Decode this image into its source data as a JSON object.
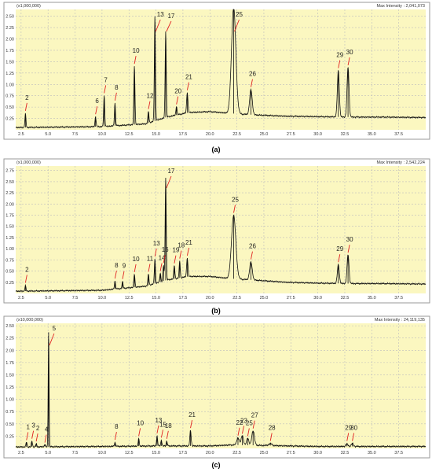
{
  "chart_data": [
    {
      "type": "line",
      "caption": "(a)",
      "scale_label": "(x1,000,000)",
      "max_intensity_label": "Max Intensity : 2,041,073",
      "xlim": [
        2.0,
        40.0
      ],
      "ylim": [
        0,
        2.65
      ],
      "x_ticks": [
        "2.5",
        "5.0",
        "7.5",
        "10.0",
        "12.5",
        "15.0",
        "17.5",
        "20.0",
        "22.5",
        "25.0",
        "27.5",
        "30.0",
        "32.5",
        "35.0",
        "37.5"
      ],
      "y_ticks": [
        "0.25",
        "0.50",
        "0.75",
        "1.00",
        "1.25",
        "1.50",
        "1.75",
        "2.00",
        "2.25",
        "2.50"
      ],
      "baseline": [
        [
          2.0,
          0.05
        ],
        [
          10.0,
          0.07
        ],
        [
          14.0,
          0.13
        ],
        [
          16.0,
          0.28
        ],
        [
          18.0,
          0.38
        ],
        [
          20.0,
          0.4
        ],
        [
          22.0,
          0.36
        ],
        [
          24.0,
          0.33
        ],
        [
          27.0,
          0.3
        ],
        [
          30.0,
          0.29
        ],
        [
          33.0,
          0.28
        ],
        [
          36.0,
          0.28
        ],
        [
          40.0,
          0.27
        ]
      ],
      "peaks": [
        {
          "label": "2",
          "rt": 2.9,
          "height": 0.3,
          "width": 0.05
        },
        {
          "label": "6",
          "rt": 9.4,
          "height": 0.22,
          "width": 0.05
        },
        {
          "label": "7",
          "rt": 10.2,
          "height": 0.68,
          "width": 0.05
        },
        {
          "label": "8",
          "rt": 11.2,
          "height": 0.5,
          "width": 0.05
        },
        {
          "label": "10",
          "rt": 13.0,
          "height": 1.3,
          "width": 0.05
        },
        {
          "label": "12",
          "rt": 14.3,
          "height": 0.25,
          "width": 0.05
        },
        {
          "label": "13",
          "rt": 14.9,
          "height": 2.3,
          "width": 0.05
        },
        {
          "label": "17",
          "rt": 15.9,
          "height": 1.9,
          "width": 0.05
        },
        {
          "label": "20",
          "rt": 16.9,
          "height": 0.2,
          "width": 0.05
        },
        {
          "label": "21",
          "rt": 17.9,
          "height": 0.45,
          "width": 0.06
        },
        {
          "label": "25",
          "rt": 22.2,
          "height": 2.35,
          "width": 0.2
        },
        {
          "label": "26",
          "rt": 23.8,
          "height": 0.55,
          "width": 0.12
        },
        {
          "label": "29",
          "rt": 31.9,
          "height": 1.02,
          "width": 0.09
        },
        {
          "label": "30",
          "rt": 32.8,
          "height": 1.1,
          "width": 0.09
        }
      ]
    },
    {
      "type": "line",
      "caption": "(b)",
      "scale_label": "(x1,000,000)",
      "max_intensity_label": "Max Intensity : 2,542,224",
      "xlim": [
        2.0,
        40.0
      ],
      "ylim": [
        0,
        2.85
      ],
      "x_ticks": [
        "2.5",
        "5.0",
        "7.5",
        "10.0",
        "12.5",
        "15.0",
        "17.5",
        "20.0",
        "22.5",
        "25.0",
        "27.5",
        "30.0",
        "32.5",
        "35.0",
        "37.5"
      ],
      "y_ticks": [
        "0.25",
        "0.50",
        "0.75",
        "1.00",
        "1.25",
        "1.50",
        "1.75",
        "2.00",
        "2.25",
        "2.50",
        "2.75"
      ],
      "baseline": [
        [
          2.0,
          0.05
        ],
        [
          10.0,
          0.07
        ],
        [
          14.0,
          0.16
        ],
        [
          16.0,
          0.3
        ],
        [
          18.0,
          0.38
        ],
        [
          20.0,
          0.38
        ],
        [
          22.0,
          0.33
        ],
        [
          24.0,
          0.3
        ],
        [
          27.0,
          0.25
        ],
        [
          30.0,
          0.23
        ],
        [
          33.0,
          0.22
        ],
        [
          36.0,
          0.22
        ],
        [
          40.0,
          0.21
        ]
      ],
      "peaks": [
        {
          "label": "2",
          "rt": 2.9,
          "height": 0.12,
          "width": 0.05
        },
        {
          "label": "8",
          "rt": 11.2,
          "height": 0.18,
          "width": 0.05
        },
        {
          "label": "9",
          "rt": 11.9,
          "height": 0.15,
          "width": 0.05
        },
        {
          "label": "10",
          "rt": 13.0,
          "height": 0.3,
          "width": 0.05
        },
        {
          "label": "11",
          "rt": 14.3,
          "height": 0.25,
          "width": 0.05
        },
        {
          "label": "13",
          "rt": 14.9,
          "height": 0.55,
          "width": 0.05
        },
        {
          "label": "14",
          "rt": 15.4,
          "height": 0.2,
          "width": 0.05
        },
        {
          "label": "16",
          "rt": 15.7,
          "height": 0.35,
          "width": 0.05
        },
        {
          "label": "17",
          "rt": 15.9,
          "height": 2.3,
          "width": 0.05
        },
        {
          "label": "19",
          "rt": 16.7,
          "height": 0.3,
          "width": 0.05
        },
        {
          "label": "18",
          "rt": 17.2,
          "height": 0.38,
          "width": 0.05
        },
        {
          "label": "21",
          "rt": 17.9,
          "height": 0.42,
          "width": 0.06
        },
        {
          "label": "25",
          "rt": 22.2,
          "height": 1.42,
          "width": 0.2
        },
        {
          "label": "26",
          "rt": 23.8,
          "height": 0.4,
          "width": 0.12
        },
        {
          "label": "29",
          "rt": 31.9,
          "height": 0.42,
          "width": 0.09
        },
        {
          "label": "30",
          "rt": 32.8,
          "height": 0.65,
          "width": 0.09
        }
      ]
    },
    {
      "type": "line",
      "caption": "(c)",
      "scale_label": "(x10,000,000)",
      "max_intensity_label": "Max Intensity : 24,119,135",
      "xlim": [
        2.0,
        40.0
      ],
      "ylim": [
        0,
        2.55
      ],
      "x_ticks": [
        "2.5",
        "5.0",
        "7.5",
        "10.0",
        "12.5",
        "15.0",
        "17.5",
        "20.0",
        "22.5",
        "25.0",
        "27.5",
        "30.0",
        "32.5",
        "35.0",
        "37.5"
      ],
      "y_ticks": [
        "0.25",
        "0.50",
        "0.75",
        "1.00",
        "1.25",
        "1.50",
        "1.75",
        "2.00",
        "2.25",
        "2.50"
      ],
      "baseline": [
        [
          2.0,
          0.03
        ],
        [
          10.0,
          0.04
        ],
        [
          15.0,
          0.05
        ],
        [
          20.0,
          0.05
        ],
        [
          22.0,
          0.07
        ],
        [
          25.0,
          0.06
        ],
        [
          30.0,
          0.04
        ],
        [
          35.0,
          0.04
        ],
        [
          40.0,
          0.04
        ]
      ],
      "peaks": [
        {
          "label": "1",
          "rt": 3.0,
          "height": 0.1,
          "width": 0.05
        },
        {
          "label": "3",
          "rt": 3.5,
          "height": 0.12,
          "width": 0.05
        },
        {
          "label": "2",
          "rt": 3.9,
          "height": 0.06,
          "width": 0.05
        },
        {
          "label": "4",
          "rt": 4.7,
          "height": 0.05,
          "width": 0.05
        },
        {
          "label": "5",
          "rt": 5.05,
          "height": 2.35,
          "width": 0.04
        },
        {
          "label": "8",
          "rt": 11.2,
          "height": 0.08,
          "width": 0.05
        },
        {
          "label": "10",
          "rt": 13.4,
          "height": 0.15,
          "width": 0.05
        },
        {
          "label": "13",
          "rt": 15.1,
          "height": 0.2,
          "width": 0.05
        },
        {
          "label": "15",
          "rt": 15.5,
          "height": 0.12,
          "width": 0.05
        },
        {
          "label": "18",
          "rt": 16.0,
          "height": 0.1,
          "width": 0.05
        },
        {
          "label": "21",
          "rt": 18.2,
          "height": 0.32,
          "width": 0.06
        },
        {
          "label": "22",
          "rt": 22.6,
          "height": 0.15,
          "width": 0.12
        },
        {
          "label": "23",
          "rt": 23.0,
          "height": 0.2,
          "width": 0.1
        },
        {
          "label": "25",
          "rt": 23.5,
          "height": 0.15,
          "width": 0.1
        },
        {
          "label": "27",
          "rt": 24.0,
          "height": 0.3,
          "width": 0.12
        },
        {
          "label": "28",
          "rt": 25.6,
          "height": 0.04,
          "width": 0.15
        },
        {
          "label": "29",
          "rt": 32.7,
          "height": 0.05,
          "width": 0.1
        },
        {
          "label": "30",
          "rt": 33.2,
          "height": 0.06,
          "width": 0.1
        }
      ]
    }
  ]
}
